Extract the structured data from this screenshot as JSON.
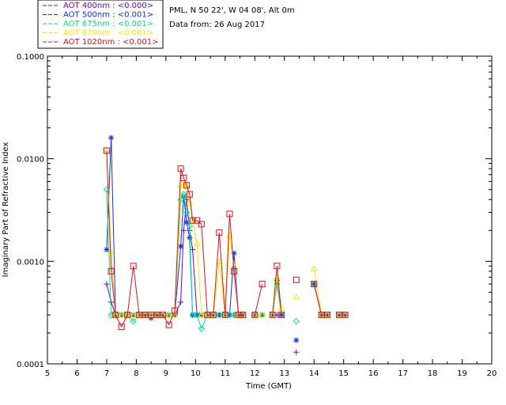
{
  "info": {
    "site_line": "PML, N 50 22', W 04 08', Alt 0m",
    "date_line": "Data from: 26 Aug 2017"
  },
  "legend": [
    {
      "label": "AOT  400nm : <0.000>",
      "color": "#7a00c8"
    },
    {
      "label": "AOT  500nm : <0.001>",
      "color": "#0a2cff"
    },
    {
      "label": "AOT  675nm : <0.001>",
      "color": "#00e887"
    },
    {
      "label": "AOT  870nm : <0.001>",
      "color": "#f2ea00"
    },
    {
      "label": "AOT 1020nm : <0.001>",
      "color": "#e8101a"
    }
  ],
  "chart_data": {
    "type": "line",
    "title": "",
    "xlabel": "Time (GMT)",
    "ylabel": "Imaginary Part of Refractive Index",
    "xlim": [
      5,
      20
    ],
    "ylim": [
      0.0001,
      0.1
    ],
    "yscale": "log",
    "x_ticks": [
      "5",
      "6",
      "7",
      "8",
      "9",
      "10",
      "11",
      "12",
      "13",
      "14",
      "15",
      "16",
      "17",
      "18",
      "19",
      "20"
    ],
    "y_ticks": [
      "0.0001",
      "0.0010",
      "0.0100",
      "0.1000"
    ],
    "grid": false,
    "legend_position": "top-left outside",
    "series": [
      {
        "name": "AOT  400nm : <0.000>",
        "marker": "plus",
        "color": "#7a00c8",
        "x": [
          7.0,
          7.15,
          7.3,
          7.5,
          7.7,
          7.9,
          8.1,
          8.3,
          8.5,
          8.7,
          8.9,
          9.1,
          9.3,
          9.5,
          9.6,
          9.7,
          9.8,
          9.9,
          10.05,
          10.2,
          10.4,
          10.6,
          10.8,
          11.0,
          11.15,
          11.3,
          11.45,
          11.6,
          12.0,
          12.25,
          12.6,
          12.75,
          12.9,
          13.4,
          14.0,
          14.25,
          14.45,
          14.85,
          15.05
        ],
        "y": [
          0.0006,
          0.0004,
          0.0003,
          0.0003,
          0.0003,
          0.0003,
          0.0003,
          0.0003,
          0.0003,
          0.0003,
          0.0003,
          0.0003,
          0.0003,
          0.0004,
          0.002,
          0.004,
          0.002,
          0.0013,
          0.0003,
          0.0003,
          0.0003,
          0.0003,
          0.0003,
          0.0003,
          0.0003,
          0.0003,
          0.0003,
          0.0003,
          0.0003,
          0.0003,
          0.0003,
          0.0003,
          0.0003,
          0.00013,
          0.0006,
          0.0003,
          0.0003,
          0.0003,
          0.0003
        ]
      },
      {
        "name": "AOT  500nm : <0.001>",
        "marker": "asterisk",
        "color": "#0a2cff",
        "x": [
          7.0,
          7.15,
          7.3,
          7.5,
          7.7,
          7.9,
          8.1,
          8.3,
          8.5,
          8.7,
          8.9,
          9.1,
          9.3,
          9.5,
          9.6,
          9.7,
          9.8,
          9.9,
          10.05,
          10.2,
          10.4,
          10.6,
          10.8,
          11.0,
          11.15,
          11.3,
          11.45,
          11.6,
          12.0,
          12.25,
          12.6,
          12.75,
          12.9,
          13.4,
          14.0,
          14.25,
          14.45,
          14.85,
          15.05
        ],
        "y": [
          0.0013,
          0.016,
          0.0003,
          0.0003,
          0.0003,
          0.0003,
          0.0003,
          0.0003,
          0.00028,
          0.0003,
          0.0003,
          0.0003,
          0.0003,
          0.0014,
          0.0043,
          0.0024,
          0.0017,
          0.0003,
          0.0003,
          0.0003,
          0.0003,
          0.0003,
          0.0003,
          0.0003,
          0.0003,
          0.0012,
          0.0003,
          0.0003,
          0.0003,
          0.0003,
          0.0003,
          0.00065,
          0.0003,
          0.00017,
          0.0006,
          0.0003,
          0.0003,
          0.0003,
          0.0003
        ]
      },
      {
        "name": "AOT  675nm : <0.001>",
        "marker": "diamond",
        "color": "#00e887",
        "x": [
          7.0,
          7.15,
          7.3,
          7.5,
          7.7,
          7.9,
          8.1,
          8.3,
          8.5,
          8.7,
          8.9,
          9.1,
          9.3,
          9.5,
          9.6,
          9.7,
          9.8,
          9.9,
          10.05,
          10.2,
          10.4,
          10.6,
          10.8,
          11.0,
          11.15,
          11.3,
          11.45,
          11.6,
          12.0,
          12.25,
          12.6,
          12.75,
          12.9,
          13.4,
          14.0,
          14.25,
          14.45,
          14.85,
          15.05
        ],
        "y": [
          0.005,
          0.0003,
          0.0003,
          0.0003,
          0.0003,
          0.00026,
          0.0003,
          0.0003,
          0.0003,
          0.0003,
          0.0003,
          0.0003,
          0.0003,
          0.004,
          0.0045,
          0.003,
          0.0022,
          0.0003,
          0.0003,
          0.00022,
          0.0003,
          0.0003,
          0.0003,
          0.0003,
          0.0003,
          0.0003,
          0.0003,
          0.0003,
          0.0003,
          0.0003,
          0.0003,
          0.0006,
          0.0003,
          0.00026,
          0.0006,
          0.0003,
          0.0003,
          0.0003,
          0.0003
        ]
      },
      {
        "name": "AOT  870nm : <0.001>",
        "marker": "triangle",
        "color": "#f2ea00",
        "x": [
          7.0,
          7.15,
          7.3,
          7.5,
          7.7,
          7.9,
          8.1,
          8.3,
          8.5,
          8.7,
          8.9,
          9.1,
          9.3,
          9.5,
          9.6,
          9.7,
          9.8,
          9.9,
          10.05,
          10.2,
          10.4,
          10.6,
          10.8,
          11.0,
          11.15,
          11.3,
          11.45,
          11.6,
          12.0,
          12.25,
          12.6,
          12.75,
          12.9,
          13.4,
          14.0,
          14.25,
          14.45,
          14.85,
          15.05
        ],
        "y": [
          0.012,
          0.0012,
          0.0003,
          0.0003,
          0.0003,
          0.0003,
          0.0003,
          0.0003,
          0.0003,
          0.0003,
          0.0003,
          0.0003,
          0.0003,
          0.0055,
          0.0055,
          0.0055,
          0.0038,
          0.0025,
          0.0015,
          0.0003,
          0.0003,
          0.0003,
          0.001,
          0.0003,
          0.0018,
          0.0009,
          0.0003,
          0.0003,
          0.0003,
          0.0003,
          0.0003,
          0.0007,
          0.00035,
          0.00045,
          0.00085,
          0.0003,
          0.0003,
          0.0003,
          0.0003
        ]
      },
      {
        "name": "AOT 1020nm : <0.001>",
        "marker": "square",
        "color": "#e8101a",
        "x": [
          7.0,
          7.15,
          7.3,
          7.5,
          7.7,
          7.9,
          8.1,
          8.3,
          8.5,
          8.7,
          8.9,
          9.1,
          9.3,
          9.5,
          9.6,
          9.7,
          9.8,
          9.9,
          10.05,
          10.2,
          10.4,
          10.6,
          10.8,
          11.0,
          11.15,
          11.3,
          11.45,
          11.6,
          12.0,
          12.25,
          12.6,
          12.75,
          12.9,
          13.4,
          14.0,
          14.25,
          14.45,
          14.85,
          15.05
        ],
        "y": [
          0.012,
          0.0008,
          0.0003,
          0.00023,
          0.0003,
          0.0009,
          0.0003,
          0.0003,
          0.0003,
          0.0003,
          0.0003,
          0.00024,
          0.00033,
          0.008,
          0.0065,
          0.0055,
          0.0045,
          0.0025,
          0.0025,
          0.0023,
          0.0003,
          0.0003,
          0.0019,
          0.0003,
          0.0029,
          0.0008,
          0.0003,
          0.0003,
          0.0003,
          0.0006,
          0.0003,
          0.0009,
          0.0003,
          0.00066,
          0.0006,
          0.0003,
          0.0003,
          0.0003,
          0.0003
        ]
      }
    ]
  }
}
